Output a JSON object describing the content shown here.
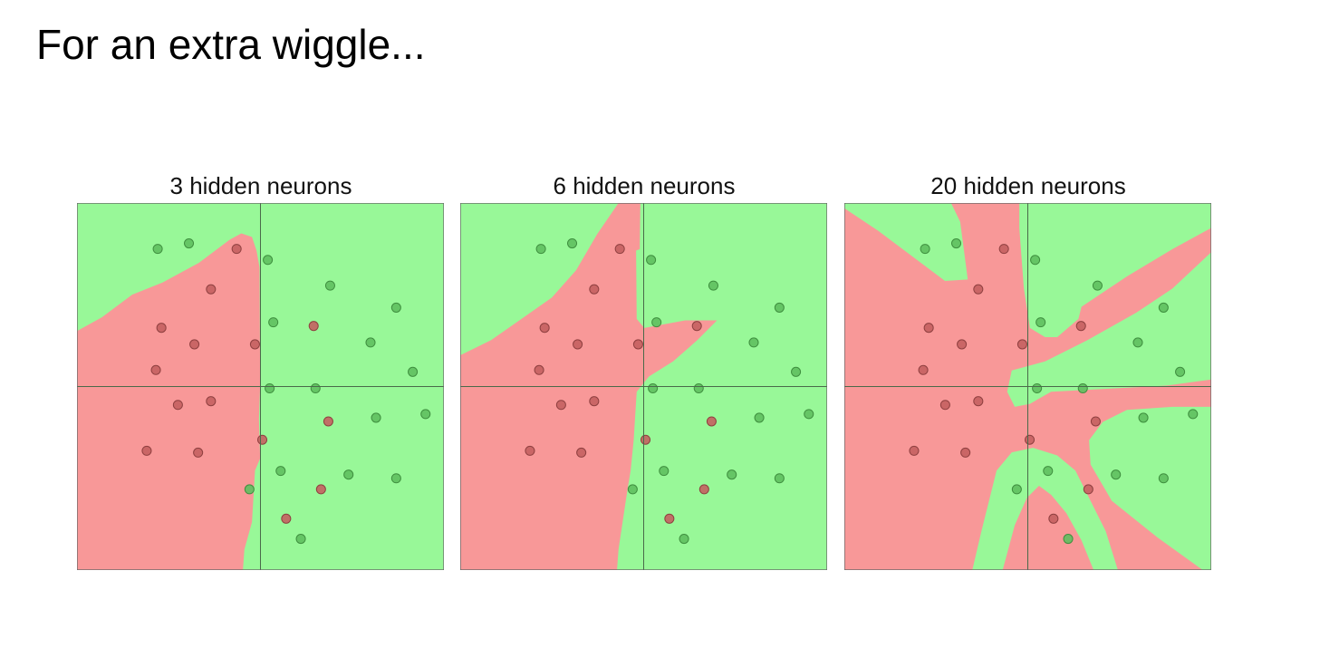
{
  "slide": {
    "title": "For an extra wiggle..."
  },
  "colors": {
    "class_a_region": "#98f898",
    "class_b_region": "#f89898",
    "class_a_point": "#5fbf5f",
    "class_b_point": "#c46060"
  },
  "panels": [
    {
      "title": "3 hidden neurons"
    },
    {
      "title": "6 hidden neurons"
    },
    {
      "title": "20 hidden neurons"
    }
  ],
  "points": [
    {
      "x": -0.56,
      "y": 0.75,
      "class": "green"
    },
    {
      "x": -0.39,
      "y": 0.78,
      "class": "green"
    },
    {
      "x": -0.13,
      "y": 0.75,
      "class": "red"
    },
    {
      "x": 0.04,
      "y": 0.69,
      "class": "green"
    },
    {
      "x": -0.27,
      "y": 0.53,
      "class": "red"
    },
    {
      "x": 0.38,
      "y": 0.55,
      "class": "green"
    },
    {
      "x": 0.74,
      "y": 0.43,
      "class": "green"
    },
    {
      "x": -0.54,
      "y": 0.32,
      "class": "red"
    },
    {
      "x": 0.07,
      "y": 0.35,
      "class": "green"
    },
    {
      "x": 0.29,
      "y": 0.33,
      "class": "red"
    },
    {
      "x": -0.36,
      "y": 0.23,
      "class": "red"
    },
    {
      "x": -0.03,
      "y": 0.23,
      "class": "red"
    },
    {
      "x": 0.6,
      "y": 0.24,
      "class": "green"
    },
    {
      "x": -0.57,
      "y": 0.09,
      "class": "red"
    },
    {
      "x": 0.83,
      "y": 0.08,
      "class": "green"
    },
    {
      "x": 0.05,
      "y": -0.01,
      "class": "green"
    },
    {
      "x": 0.3,
      "y": -0.01,
      "class": "green"
    },
    {
      "x": -0.45,
      "y": -0.1,
      "class": "red"
    },
    {
      "x": -0.27,
      "y": -0.08,
      "class": "red"
    },
    {
      "x": 0.63,
      "y": -0.17,
      "class": "green"
    },
    {
      "x": 0.9,
      "y": -0.15,
      "class": "green"
    },
    {
      "x": 0.37,
      "y": -0.19,
      "class": "red"
    },
    {
      "x": 0.01,
      "y": -0.29,
      "class": "red"
    },
    {
      "x": -0.62,
      "y": -0.35,
      "class": "red"
    },
    {
      "x": -0.34,
      "y": -0.36,
      "class": "red"
    },
    {
      "x": 0.11,
      "y": -0.46,
      "class": "green"
    },
    {
      "x": 0.48,
      "y": -0.48,
      "class": "green"
    },
    {
      "x": 0.74,
      "y": -0.5,
      "class": "green"
    },
    {
      "x": -0.06,
      "y": -0.56,
      "class": "green"
    },
    {
      "x": 0.33,
      "y": -0.56,
      "class": "red"
    },
    {
      "x": 0.14,
      "y": -0.72,
      "class": "red"
    },
    {
      "x": 0.22,
      "y": -0.83,
      "class": "green"
    }
  ]
}
